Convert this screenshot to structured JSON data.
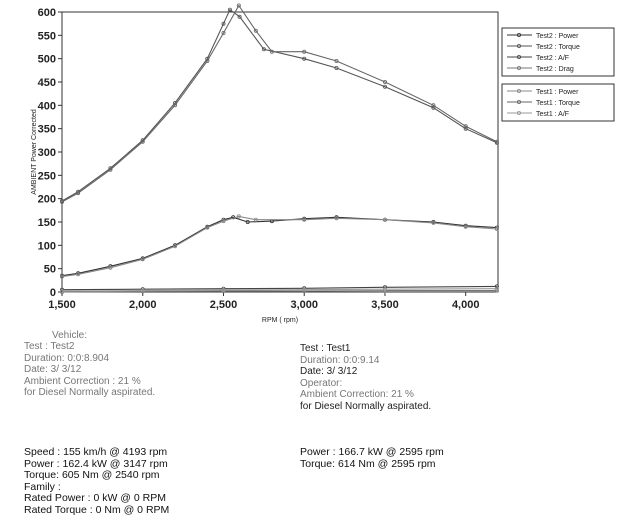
{
  "chart_data": {
    "type": "line",
    "xlabel": "RPM ( rpm)",
    "ylabel": "AMBIENT Power Corrected",
    "xlim": [
      1500,
      4200
    ],
    "ylim": [
      0,
      600
    ],
    "xticks": [
      "1,500",
      "2,000",
      "2,500",
      "3,000",
      "3,500",
      "4,000"
    ],
    "yticks": [
      "0",
      "50",
      "100",
      "150",
      "200",
      "250",
      "300",
      "350",
      "400",
      "450",
      "500",
      "550",
      "600"
    ],
    "legend_position": "top-right",
    "series": [
      {
        "name": "Test2 : Power",
        "x": [
          1500,
          1600,
          1800,
          2000,
          2200,
          2400,
          2500,
          2560,
          2650,
          2800,
          3000,
          3200,
          3500,
          3800,
          4000,
          4193
        ],
        "y": [
          35,
          40,
          55,
          72,
          100,
          140,
          155,
          160,
          150,
          152,
          157,
          160,
          155,
          150,
          142,
          138
        ]
      },
      {
        "name": "Test2 : Torque",
        "x": [
          1500,
          1600,
          1800,
          2000,
          2200,
          2400,
          2500,
          2540,
          2600,
          2750,
          3000,
          3200,
          3500,
          3800,
          4000,
          4193
        ],
        "y": [
          195,
          215,
          265,
          325,
          405,
          500,
          575,
          605,
          590,
          520,
          500,
          480,
          440,
          395,
          350,
          320
        ]
      },
      {
        "name": "Test2 : A/F",
        "x": [
          1500,
          2000,
          2500,
          3000,
          3500,
          4193
        ],
        "y": [
          5,
          6,
          7,
          8,
          10,
          12
        ]
      },
      {
        "name": "Test2 : Drag",
        "x": [
          1500,
          2000,
          2500,
          3000,
          3500,
          4193
        ],
        "y": [
          0,
          1,
          2,
          2,
          3,
          3
        ]
      },
      {
        "name": "Test1 : Power",
        "x": [
          1500,
          1600,
          1800,
          2000,
          2200,
          2400,
          2500,
          2595,
          2700,
          3000,
          3200,
          3500,
          3800,
          4000,
          4193
        ],
        "y": [
          33,
          38,
          52,
          70,
          98,
          138,
          152,
          162,
          155,
          155,
          158,
          155,
          148,
          140,
          135
        ]
      },
      {
        "name": "Test1 : Torque",
        "x": [
          1500,
          1600,
          1800,
          2000,
          2200,
          2400,
          2500,
          2595,
          2700,
          2800,
          3000,
          3200,
          3500,
          3800,
          4000,
          4193
        ],
        "y": [
          193,
          212,
          262,
          322,
          400,
          495,
          555,
          614,
          560,
          515,
          515,
          495,
          450,
          400,
          355,
          322
        ]
      },
      {
        "name": "Test1 : A/F",
        "x": [
          1500,
          2000,
          2500,
          3000,
          3500,
          4193
        ],
        "y": [
          2,
          3,
          4,
          5,
          6,
          7
        ]
      }
    ]
  },
  "test2_block": {
    "vehicle": "Vehicle:",
    "test": "Test    : Test2",
    "duration": "Duration: 0:0:8.904",
    "date": "Date:  3/ 3/12",
    "ambient": "Ambient Correction : 21 %",
    "normally": "  for Diesel Normally aspirated."
  },
  "test1_block": {
    "test": "Test    : Test1",
    "duration": "Duration: 0:0:9.14",
    "date": "Date:  3/ 3/12",
    "operator": "Operator:",
    "ambient": "Ambient Correction: 21 %",
    "normally": " for Diesel Normally aspirated."
  },
  "results_left": {
    "speed": "Speed : 155 km/h @ 4193 rpm",
    "power": "Power : 162.4 kW @ 3147 rpm",
    "torque": "Torque: 605 Nm @ 2540 rpm",
    "family": "Family :",
    "rated_power": "Rated Power : 0 kW @ 0 RPM",
    "rated_torque": "Rated Torque : 0 Nm @ 0 RPM"
  },
  "results_right": {
    "power": "Power : 166.7 kW @ 2595 rpm",
    "torque": "Torque: 614 Nm @ 2595 rpm"
  }
}
